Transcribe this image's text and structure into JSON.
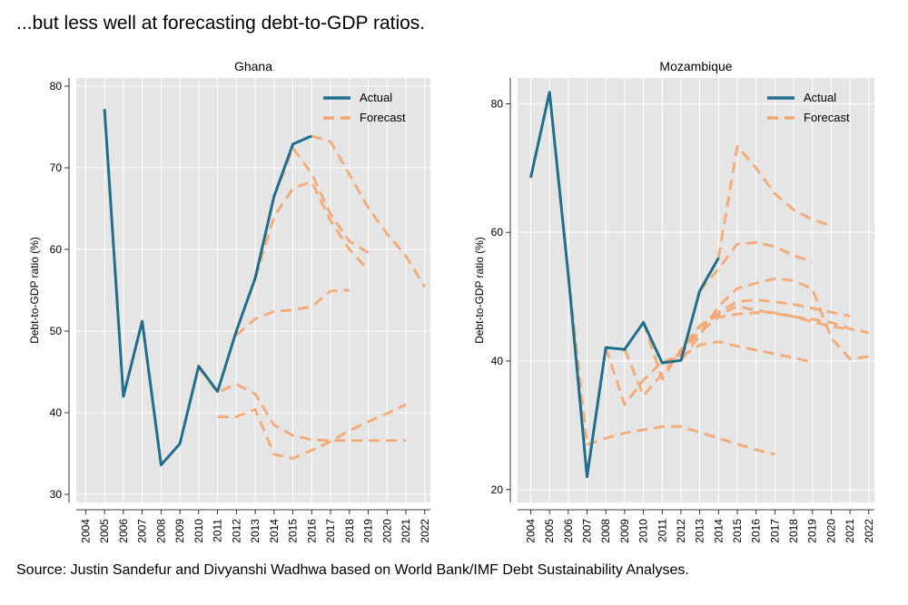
{
  "headline": "...but less well at forecasting debt-to-GDP ratios.",
  "source": "Source: Justin Sandefur and Divyanshi Wadhwa based on World Bank/IMF Debt Sustainability Analyses.",
  "colors": {
    "actual": "#1e6e8c",
    "forecast": "#f4a56f",
    "plot_bg": "#e5e5e5",
    "grid": "#ffffff"
  },
  "chart_data": [
    {
      "type": "line",
      "title": "Ghana",
      "ylabel": "Debt-to-GDP ratio (%)",
      "xlabel": "",
      "xlim": [
        2003.5,
        2022.3
      ],
      "ylim": [
        29,
        81
      ],
      "x_ticks": [
        "2004",
        "2005",
        "2006",
        "2007",
        "2008",
        "2009",
        "2010",
        "2011",
        "2012",
        "2013",
        "2014",
        "2015",
        "2016",
        "2017",
        "2018",
        "2019",
        "2020",
        "2021",
        "2022"
      ],
      "y_ticks": [
        30,
        40,
        50,
        60,
        70,
        80
      ],
      "legend": {
        "position": "top-right",
        "entries": [
          "Actual",
          "Forecast"
        ]
      },
      "series": [
        {
          "name": "Actual",
          "style": "solid",
          "x": [
            2005,
            2006,
            2007,
            2008,
            2009,
            2010,
            2011,
            2012,
            2013,
            2014,
            2015,
            2016
          ],
          "y": [
            77.2,
            42.0,
            51.2,
            33.6,
            36.2,
            45.7,
            42.6,
            50.0,
            56.5,
            66.5,
            72.9,
            73.9
          ]
        },
        {
          "name": "Forecast",
          "style": "dashed",
          "x": [
            2010,
            2011,
            2012,
            2013,
            2014,
            2015,
            2016,
            2017,
            2018,
            2019,
            2020,
            2021
          ],
          "y": [
            45.5,
            42.5,
            43.5,
            42.3,
            38.5,
            37.2,
            36.7,
            36.6,
            36.6,
            36.6,
            36.6,
            36.6
          ]
        },
        {
          "name": "Forecast",
          "style": "dashed",
          "x": [
            2011,
            2012,
            2013,
            2014,
            2015,
            2016,
            2017,
            2018,
            2019,
            2020,
            2021
          ],
          "y": [
            39.5,
            39.5,
            40.4,
            34.9,
            34.4,
            35.4,
            36.5,
            37.8,
            38.9,
            39.9,
            41.0
          ]
        },
        {
          "name": "Forecast",
          "style": "dashed",
          "x": [
            2012,
            2013,
            2014,
            2015,
            2016,
            2017,
            2018
          ],
          "y": [
            49.5,
            51.5,
            52.4,
            52.6,
            53.0,
            54.9,
            55.0
          ]
        },
        {
          "name": "Forecast",
          "style": "dashed",
          "x": [
            2013,
            2014,
            2015,
            2016,
            2017,
            2018,
            2019
          ],
          "y": [
            56.5,
            64.0,
            67.5,
            68.3,
            63.5,
            60.0,
            57.5
          ]
        },
        {
          "name": "Forecast",
          "style": "dashed",
          "x": [
            2014,
            2015,
            2016,
            2017,
            2018,
            2019
          ],
          "y": [
            66.5,
            72.4,
            69.3,
            64.3,
            61.0,
            59.6
          ]
        },
        {
          "name": "Forecast",
          "style": "dashed",
          "x": [
            2016,
            2017,
            2018,
            2019,
            2020,
            2021,
            2022
          ],
          "y": [
            73.9,
            73.2,
            69.2,
            65.1,
            61.9,
            59.2,
            55.4
          ]
        }
      ]
    },
    {
      "type": "line",
      "title": "Mozambique",
      "ylabel": "Debt-to-GDP ratio (%)",
      "xlabel": "",
      "xlim": [
        2003.3,
        2022.3
      ],
      "ylim": [
        18,
        84
      ],
      "x_ticks": [
        "2004",
        "2005",
        "2006",
        "2007",
        "2008",
        "2009",
        "2010",
        "2011",
        "2012",
        "2013",
        "2014",
        "2015",
        "2016",
        "2017",
        "2018",
        "2019",
        "2020",
        "2021",
        "2022"
      ],
      "y_ticks": [
        20,
        40,
        60,
        80
      ],
      "legend": {
        "position": "top-right",
        "entries": [
          "Actual",
          "Forecast"
        ]
      },
      "series": [
        {
          "name": "Actual",
          "style": "solid",
          "x": [
            2004,
            2005,
            2006,
            2007,
            2008,
            2009,
            2010,
            2011,
            2012,
            2013,
            2014
          ],
          "y": [
            68.5,
            81.8,
            53.5,
            22.0,
            42.1,
            41.8,
            46.0,
            39.7,
            40.1,
            50.9,
            56.0
          ]
        },
        {
          "name": "Forecast",
          "style": "dashed",
          "x": [
            2006,
            2007
          ],
          "y": [
            53.5,
            27.0
          ]
        },
        {
          "name": "Forecast",
          "style": "dashed",
          "x": [
            2007,
            2008,
            2009,
            2010,
            2011,
            2012,
            2013,
            2014,
            2015,
            2016,
            2017
          ],
          "y": [
            27.0,
            28.0,
            28.8,
            29.3,
            29.8,
            29.8,
            28.9,
            28.0,
            27.1,
            26.2,
            25.5
          ]
        },
        {
          "name": "Forecast",
          "style": "dashed",
          "x": [
            2008,
            2009,
            2010,
            2011,
            2012,
            2013,
            2014,
            2015,
            2016,
            2017,
            2018,
            2019
          ],
          "y": [
            42.1,
            33.2,
            37.0,
            39.9,
            40.6,
            42.5,
            43.0,
            42.3,
            41.7,
            41.1,
            40.5,
            39.8
          ]
        },
        {
          "name": "Forecast",
          "style": "dashed",
          "x": [
            2009,
            2010,
            2011,
            2012,
            2013,
            2014,
            2015,
            2016,
            2017,
            2018,
            2019,
            2020,
            2021
          ],
          "y": [
            41.8,
            34.6,
            38.0,
            41.3,
            44.5,
            46.8,
            47.3,
            47.5,
            47.5,
            46.9,
            46.1,
            45.4,
            44.9
          ]
        },
        {
          "name": "Forecast",
          "style": "dashed",
          "x": [
            2010,
            2011,
            2012,
            2013,
            2014,
            2015,
            2016,
            2017,
            2018,
            2019,
            2020,
            2021,
            2022
          ],
          "y": [
            46.0,
            37.2,
            41.8,
            45.5,
            47.2,
            48.5,
            47.9,
            47.4,
            46.9,
            46.5,
            46.0,
            45.0,
            44.4
          ]
        },
        {
          "name": "Forecast",
          "style": "dashed",
          "x": [
            2011,
            2012,
            2013,
            2014,
            2015,
            2016,
            2017,
            2018,
            2019,
            2020,
            2021
          ],
          "y": [
            39.7,
            41.0,
            45.2,
            47.6,
            49.2,
            49.5,
            49.2,
            48.8,
            48.2,
            47.6,
            47.0
          ]
        },
        {
          "name": "Forecast",
          "style": "dashed",
          "x": [
            2012,
            2013,
            2014,
            2015,
            2016,
            2017,
            2018,
            2019,
            2020,
            2021,
            2022
          ],
          "y": [
            40.1,
            44.0,
            48.5,
            51.3,
            52.1,
            52.8,
            52.5,
            51.2,
            43.6,
            40.3,
            40.7
          ]
        },
        {
          "name": "Forecast",
          "style": "dashed",
          "x": [
            2013,
            2014,
            2015,
            2016,
            2017,
            2018,
            2019
          ],
          "y": [
            50.9,
            54.3,
            58.2,
            58.4,
            57.8,
            56.4,
            55.4
          ]
        },
        {
          "name": "Forecast",
          "style": "dashed",
          "x": [
            2014,
            2015,
            2016,
            2017,
            2018,
            2019,
            2020
          ],
          "y": [
            56.0,
            73.4,
            70.0,
            66.0,
            63.5,
            62.0,
            61.0
          ]
        }
      ]
    }
  ]
}
